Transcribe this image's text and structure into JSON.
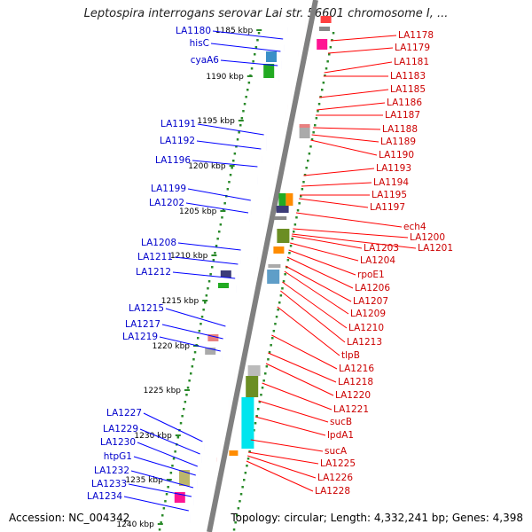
{
  "title": "Leptospira interrogans serovar Lai str. 56601 chromosome I, ...",
  "accession": "Accession: NC_004342",
  "topology": "Topology: circular; Length: 4,332,241 bp; Genes: 4,398",
  "colors": {
    "backbone": "#808080",
    "tick": "#2a8a2a",
    "forward": "#0000ff",
    "reverse": "#ff0000",
    "forward_label": "#0000cc",
    "reverse_label": "#cc0000"
  },
  "scale_labels": [
    "1185 kbp",
    "1190 kbp",
    "1195 kbp",
    "1200 kbp",
    "1205 kbp",
    "1210 kbp",
    "1215 kbp",
    "1220 kbp",
    "1225 kbp",
    "1230 kbp",
    "1235 kbp",
    "1240 kbp"
  ],
  "forward_labels": [
    "LA1180",
    "hisC",
    "cyaA6",
    "LA1191",
    "LA1192",
    "LA1196",
    "LA1199",
    "LA1202",
    "LA1208",
    "LA1211",
    "LA1212",
    "LA1215",
    "LA1217",
    "LA1219",
    "LA1227",
    "LA1229",
    "LA1230",
    "htpG1",
    "LA1232",
    "LA1233",
    "LA1234"
  ],
  "reverse_labels": [
    "LA1178",
    "LA1179",
    "LA1181",
    "LA1183",
    "LA1185",
    "LA1186",
    "LA1187",
    "LA1188",
    "LA1189",
    "LA1190",
    "LA1193",
    "LA1194",
    "LA1195",
    "LA1197",
    "ech4",
    "LA1200",
    "LA1201",
    "LA1203",
    "LA1204",
    "rpoE1",
    "LA1206",
    "LA1207",
    "LA1209",
    "LA1210",
    "LA1213",
    "tlpB",
    "LA1216",
    "LA1218",
    "LA1220",
    "LA1221",
    "sucB",
    "lpdA1",
    "sucA",
    "LA1225",
    "LA1226",
    "LA1228"
  ]
}
